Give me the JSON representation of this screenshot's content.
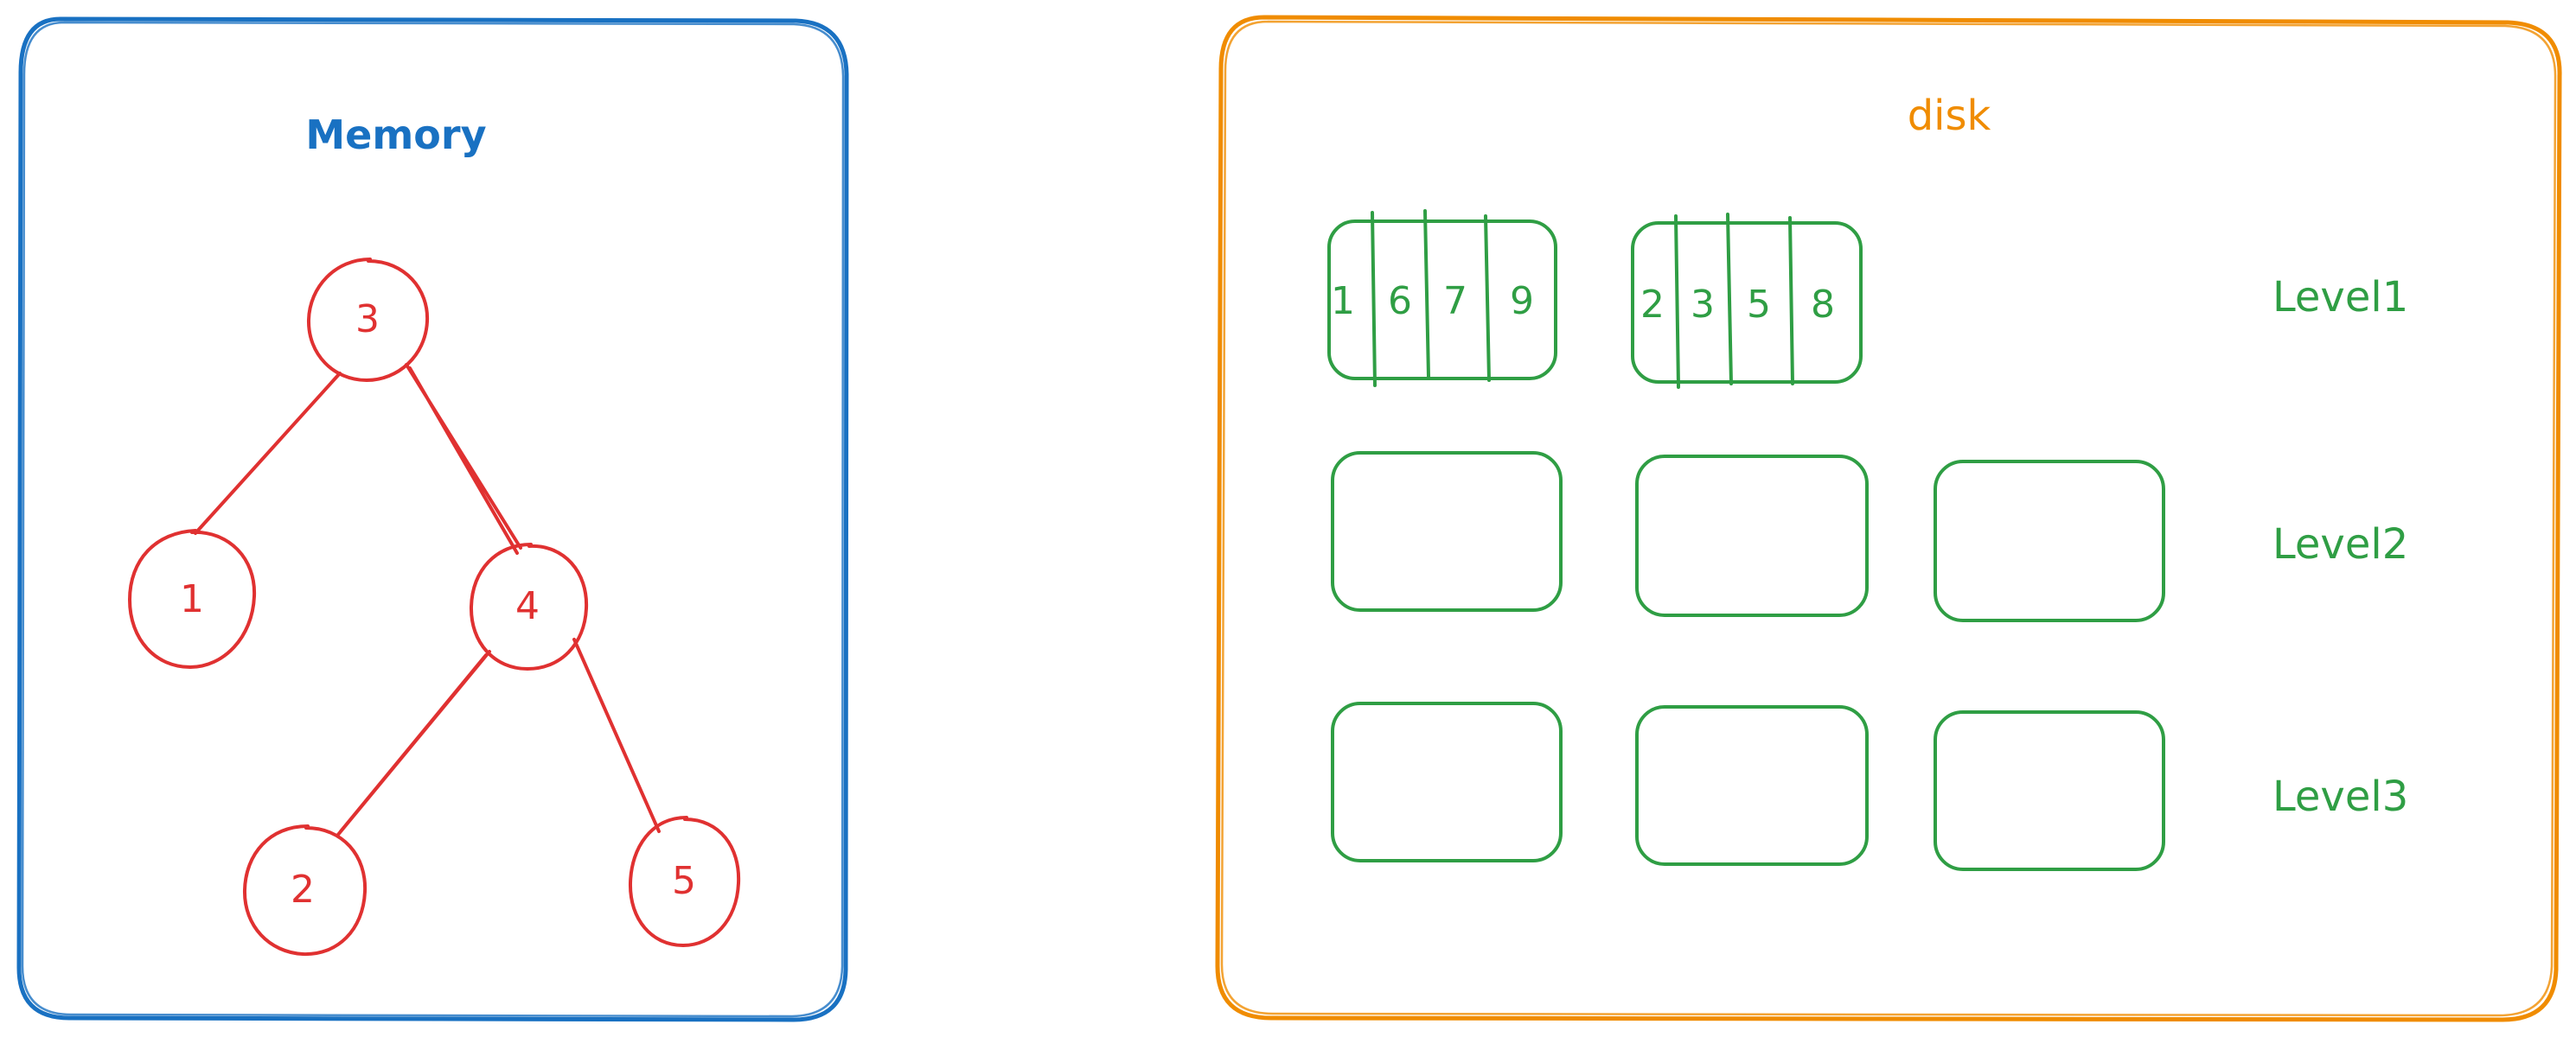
{
  "colors": {
    "memory": "#1971c2",
    "disk": "#f08c00",
    "tree": "#e03131",
    "levels": "#2f9e44"
  },
  "memory": {
    "title": "Memory",
    "nodes": [
      {
        "id": "n3",
        "label": "3"
      },
      {
        "id": "n1",
        "label": "1"
      },
      {
        "id": "n4",
        "label": "4"
      },
      {
        "id": "n2",
        "label": "2"
      },
      {
        "id": "n5",
        "label": "5"
      }
    ],
    "edges": [
      {
        "from": "n3",
        "to": "n1"
      },
      {
        "from": "n3",
        "to": "n4"
      },
      {
        "from": "n4",
        "to": "n2"
      },
      {
        "from": "n4",
        "to": "n5"
      }
    ]
  },
  "disk": {
    "title": "disk",
    "levels": [
      {
        "label": "Level1",
        "blocks": [
          {
            "cells": [
              "1",
              "6",
              "7",
              "9"
            ]
          },
          {
            "cells": [
              "2",
              "3",
              "5",
              "8"
            ]
          }
        ]
      },
      {
        "label": "Level2",
        "blocks": [
          {
            "cells": []
          },
          {
            "cells": []
          },
          {
            "cells": []
          }
        ]
      },
      {
        "label": "Level3",
        "blocks": [
          {
            "cells": []
          },
          {
            "cells": []
          },
          {
            "cells": []
          }
        ]
      }
    ]
  }
}
